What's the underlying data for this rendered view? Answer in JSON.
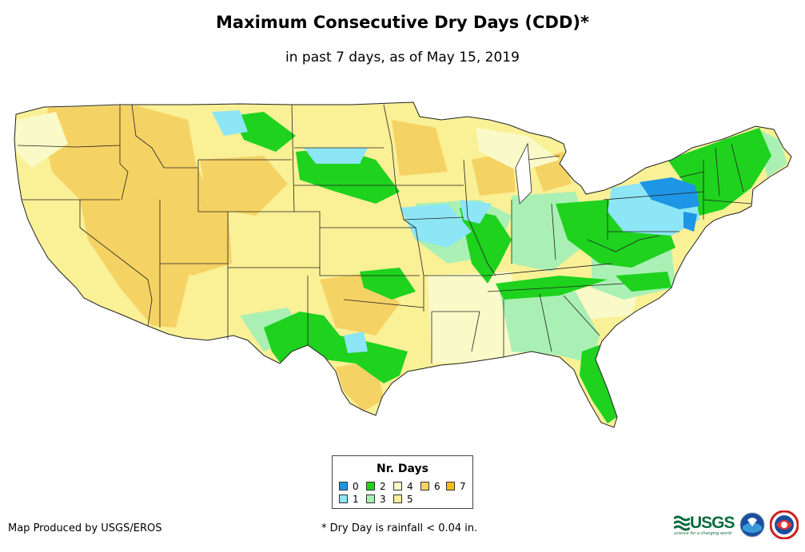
{
  "header": {
    "title": "Maximum Consecutive Dry Days (CDD)*",
    "subtitle": "in past 7 days, as of May 15, 2019"
  },
  "legend": {
    "title": "Nr. Days",
    "items": [
      {
        "label": "0",
        "color": "#1e96e6"
      },
      {
        "label": "1",
        "color": "#8ce6f5"
      },
      {
        "label": "2",
        "color": "#1ed21e"
      },
      {
        "label": "3",
        "color": "#aaf0b4"
      },
      {
        "label": "4",
        "color": "#fafac8"
      },
      {
        "label": "5",
        "color": "#faf096"
      },
      {
        "label": "6",
        "color": "#f5d264"
      },
      {
        "label": "7",
        "color": "#f5be14"
      }
    ]
  },
  "footer": {
    "producer": "Map Produced by USGS/EROS",
    "note": "* Dry Day is rainfall < 0.04 in."
  },
  "logos": {
    "usgs": "USGS",
    "usgs_tagline": "science for a changing world",
    "noaa": "noaa",
    "nws": "NWS"
  }
}
